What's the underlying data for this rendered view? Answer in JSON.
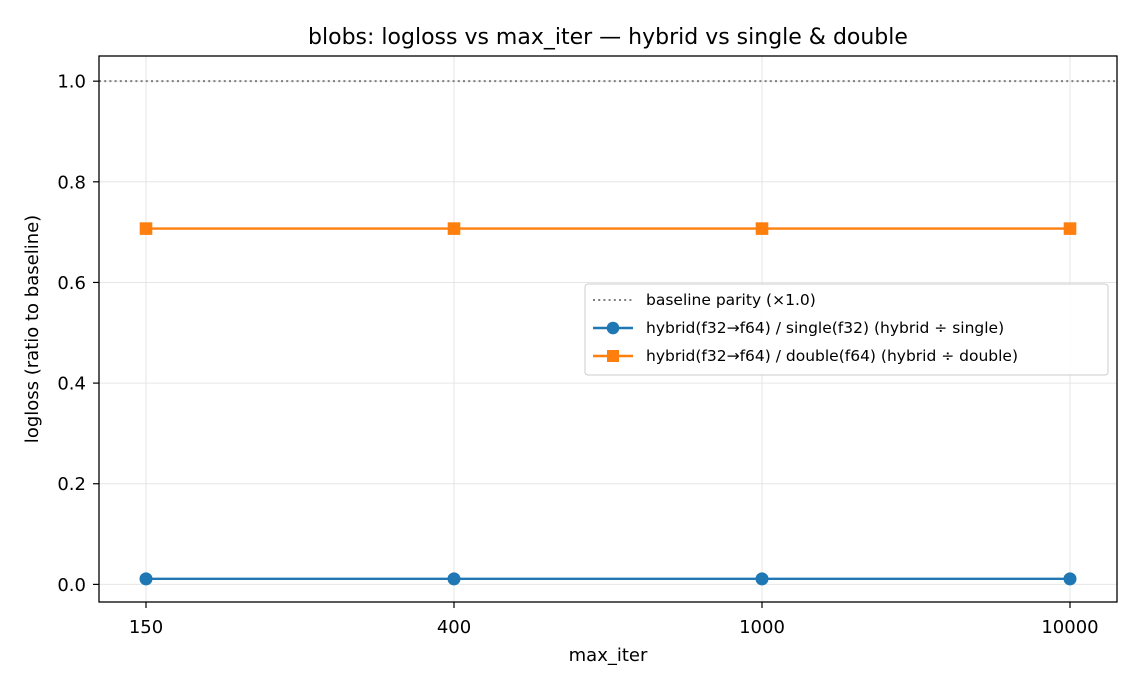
{
  "chart_data": {
    "type": "line",
    "title": "blobs: logloss vs max_iter — hybrid vs single & double",
    "xlabel": "max_iter",
    "ylabel": "logloss (ratio to baseline)",
    "categories": [
      "150",
      "400",
      "1000",
      "10000"
    ],
    "ylim": [
      -0.035,
      1.05
    ],
    "yticks": [
      "0.0",
      "0.2",
      "0.4",
      "0.6",
      "0.8",
      "1.0"
    ],
    "grid": true,
    "legend_position": "center-right",
    "baseline": {
      "name": "baseline parity (×1.0)",
      "value": 1.0,
      "color": "#7f7f7f",
      "style": "dotted"
    },
    "series": [
      {
        "name": "hybrid(f32→f64) / single(f32)  (hybrid ÷ single)",
        "values": [
          0.011,
          0.011,
          0.011,
          0.011
        ],
        "color": "#1f77b4",
        "marker": "circle"
      },
      {
        "name": "hybrid(f32→f64) / double(f64)  (hybrid ÷ double)",
        "values": [
          0.707,
          0.707,
          0.707,
          0.707
        ],
        "color": "#ff7f0e",
        "marker": "square"
      }
    ]
  }
}
